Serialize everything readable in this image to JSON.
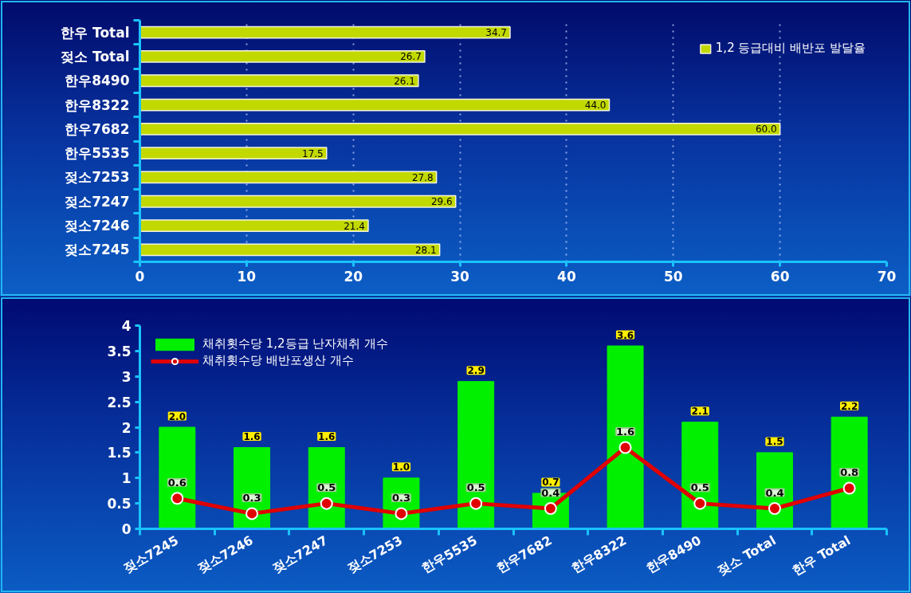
{
  "chart_data": [
    {
      "type": "bar",
      "orientation": "horizontal",
      "categories": [
        "한우 Total",
        "젖소 Total",
        "한우8490",
        "한우8322",
        "한우7682",
        "한우5535",
        "젖소7253",
        "젖소7247",
        "젖소7246",
        "젖소7245"
      ],
      "series": [
        {
          "name": "1,2 등급대비 배반포 발달율",
          "color": "#c2d900",
          "values": [
            34.7,
            26.7,
            26.1,
            44.0,
            60.0,
            17.5,
            27.8,
            29.6,
            21.4,
            28.1
          ],
          "value_labels": [
            "34.7",
            "26.7",
            "26.1",
            "44.0",
            "60.0",
            "17.5",
            "27.8",
            "29.6",
            "21.4",
            "28.1"
          ]
        }
      ],
      "xlim": [
        0,
        70
      ],
      "xticks": [
        0,
        10,
        20,
        30,
        40,
        50,
        60,
        70
      ],
      "grid": "x",
      "legend": "top right"
    },
    {
      "type": "bar",
      "categories": [
        "젖소7245",
        "젖소7246",
        "젖소7247",
        "젖소7253",
        "한우5535",
        "한우7682",
        "한우8322",
        "한우8490",
        "젖소 Total",
        "한우 Total"
      ],
      "series": [
        {
          "name": "채취횟수당 1,2등급 난자채취 개수",
          "color": "#00f000",
          "values": [
            2.0,
            1.6,
            1.6,
            1.0,
            2.9,
            0.7,
            3.6,
            2.1,
            1.5,
            2.2
          ],
          "value_labels": [
            "2.0",
            "1.6",
            "1.6",
            "1.0",
            "2.9",
            "0.7",
            "3.6",
            "2.1",
            "1.5",
            "2.2"
          ]
        },
        {
          "name": "채취횟수당 배반포생산 개수",
          "type": "line",
          "color": "#e00000",
          "marker": "circle",
          "values": [
            0.6,
            0.3,
            0.5,
            0.3,
            0.5,
            0.4,
            1.6,
            0.5,
            0.4,
            0.8
          ],
          "value_labels": [
            "0.6",
            "0.3",
            "0.5",
            "0.3",
            "0.5",
            "0.4",
            "1.6",
            "0.5",
            "0.4",
            "0.8"
          ]
        }
      ],
      "ylim": [
        0,
        4
      ],
      "yticks": [
        0,
        0.5,
        1,
        1.5,
        2,
        2.5,
        3,
        3.5,
        4
      ],
      "grid": false,
      "legend": "top left"
    }
  ]
}
